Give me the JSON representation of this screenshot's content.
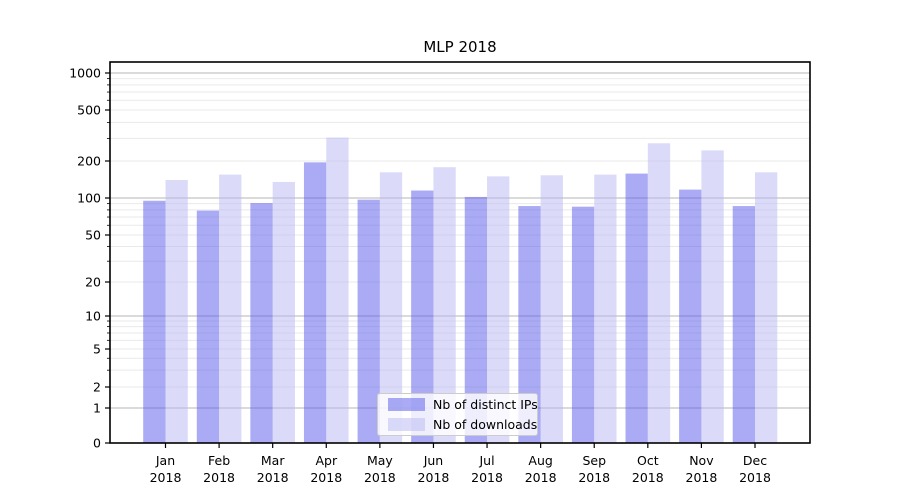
{
  "figure": {
    "title": "MLP 2018"
  },
  "chart_data": {
    "type": "bar",
    "title": "MLP 2018",
    "categories": [
      "Jan 2018",
      "Feb 2018",
      "Mar 2018",
      "Apr 2018",
      "May 2018",
      "Jun 2018",
      "Jul 2018",
      "Aug 2018",
      "Sep 2018",
      "Oct 2018",
      "Nov 2018",
      "Dec 2018"
    ],
    "month_labels": [
      "Jan",
      "Feb",
      "Mar",
      "Apr",
      "May",
      "Jun",
      "Jul",
      "Aug",
      "Sep",
      "Oct",
      "Nov",
      "Dec"
    ],
    "year_label": "2018",
    "series": [
      {
        "name": "Nb of distinct IPs",
        "color": "#5558ea",
        "alpha": 0.5,
        "values": [
          95,
          79,
          91,
          195,
          97,
          115,
          102,
          86,
          85,
          158,
          117,
          86
        ]
      },
      {
        "name": "Nb of downloads",
        "color": "#b7b7f3",
        "alpha": 0.5,
        "values": [
          140,
          155,
          135,
          305,
          162,
          178,
          150,
          153,
          155,
          275,
          242,
          162
        ]
      }
    ],
    "xlabel": "",
    "ylabel": "",
    "y_scale": "symlog",
    "y_ticks": [
      0,
      1,
      2,
      5,
      10,
      20,
      50,
      100,
      200,
      500,
      1000
    ],
    "ylim": [
      0,
      1400
    ],
    "grid": "both",
    "legend_position": "inside lower-center",
    "colors": {
      "major_grid": "#c4c4c4",
      "minor_grid": "#e9e9e9",
      "spine": "#000000",
      "background": "#ffffff"
    }
  }
}
